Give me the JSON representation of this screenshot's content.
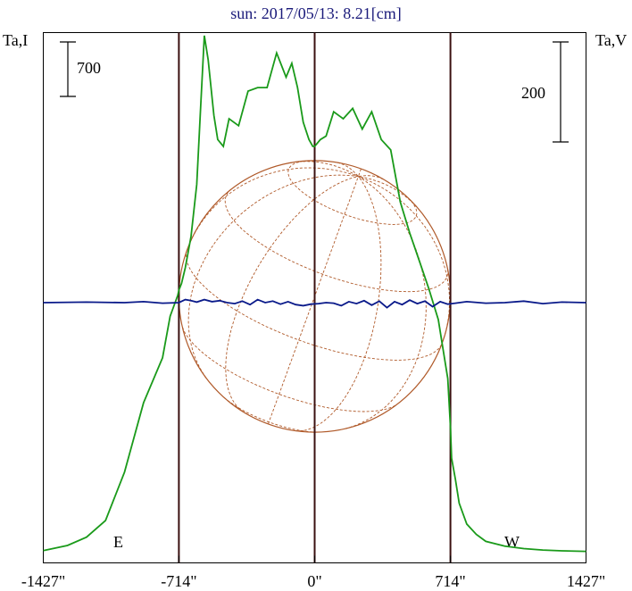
{
  "title": "sun: 2017/05/13: 8.21[cm]",
  "left_axis_label": "Ta,I",
  "right_axis_label": "Ta,V",
  "left_scale_value": "700",
  "right_scale_value": "200",
  "limb_labels": {
    "east": "E",
    "west": "W"
  },
  "x_tick_labels": [
    "-1427\"",
    "-714\"",
    "0\"",
    "714\"",
    "1427\""
  ],
  "colors": {
    "title": "#1a1a7a",
    "intensity": "#1a9a1a",
    "polarization": "#0a1a8a",
    "disk": "#b05a2a",
    "limb_lines": "#3a1010"
  },
  "chart_data": {
    "type": "line",
    "x_unit": "arcsec",
    "xlim": [
      -1427,
      1427
    ],
    "x_ticks": [
      -1427,
      -714,
      0,
      714,
      1427
    ],
    "limbs": [
      -714,
      714
    ],
    "disk": {
      "center_x": 0,
      "radius": 714
    },
    "series": [
      {
        "key": "intensity",
        "x": [
          -1427,
          -1300,
          -1200,
          -1100,
          -1000,
          -900,
          -800,
          -760,
          -720,
          -714,
          -700,
          -680,
          -650,
          -620,
          -600,
          -580,
          -560,
          -530,
          -510,
          -480,
          -450,
          -400,
          -350,
          -300,
          -250,
          -200,
          -150,
          -120,
          -90,
          -60,
          -30,
          -10,
          0,
          30,
          60,
          100,
          150,
          200,
          250,
          300,
          350,
          400,
          450,
          500,
          550,
          600,
          650,
          700,
          714,
          720,
          740,
          760,
          800,
          850,
          900,
          1000,
          1100,
          1200,
          1300,
          1427
        ],
        "y": [
          30,
          180,
          420,
          900,
          2300,
          4300,
          5600,
          6800,
          7400,
          7550,
          7750,
          8200,
          9100,
          10600,
          12800,
          14900,
          14200,
          12600,
          11900,
          11700,
          12500,
          12300,
          13300,
          13400,
          13400,
          14400,
          13700,
          14100,
          13400,
          12400,
          11900,
          11700,
          11700,
          11900,
          12000,
          12700,
          12500,
          12800,
          12200,
          12700,
          11900,
          11600,
          10100,
          9200,
          8400,
          7600,
          6700,
          5000,
          3600,
          2700,
          2100,
          1400,
          800,
          500,
          300,
          160,
          90,
          50,
          25,
          10
        ]
      },
      {
        "key": "polarization",
        "x": [
          -1427,
          -1200,
          -1000,
          -900,
          -800,
          -714,
          -680,
          -650,
          -620,
          -580,
          -540,
          -500,
          -460,
          -420,
          -380,
          -340,
          -300,
          -260,
          -220,
          -180,
          -140,
          -100,
          -60,
          -20,
          20,
          60,
          100,
          140,
          180,
          220,
          260,
          300,
          340,
          380,
          420,
          460,
          500,
          540,
          580,
          620,
          660,
          700,
          740,
          800,
          900,
          1000,
          1100,
          1200,
          1300,
          1427
        ],
        "y": [
          0,
          1,
          0,
          2,
          -1,
          0,
          6,
          4,
          1,
          6,
          2,
          4,
          0,
          -2,
          3,
          -4,
          6,
          0,
          3,
          -3,
          2,
          -4,
          -6,
          -3,
          -2,
          0,
          -1,
          -6,
          2,
          -2,
          4,
          -5,
          3,
          -10,
          2,
          -4,
          5,
          -2,
          3,
          -8,
          2,
          -3,
          -1,
          2,
          -1,
          0,
          3,
          -2,
          1,
          0
        ]
      }
    ]
  }
}
